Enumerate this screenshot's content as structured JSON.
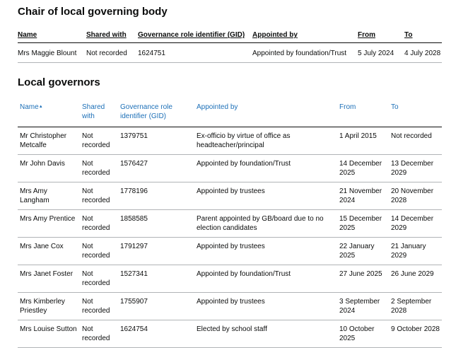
{
  "chair": {
    "title": "Chair of local governing body",
    "headers": [
      "Name",
      "Shared with",
      "Governance role identifier (GID)",
      "Appointed by",
      "From",
      "To"
    ],
    "rows": [
      [
        "Mrs Maggie Blount",
        "Not recorded",
        "1624751",
        "Appointed by foundation/Trust",
        "5 July 2024",
        "4 July 2028"
      ]
    ]
  },
  "governors": {
    "title": "Local governors",
    "headers": [
      "Name",
      "Shared with",
      "Governance role identifier (GID)",
      "Appointed by",
      "From",
      "To"
    ],
    "rows": [
      [
        "Mr Christopher Metcalfe",
        "Not recorded",
        "1379751",
        "Ex-officio by virtue of office as headteacher/principal",
        "1 April 2015",
        "Not recorded"
      ],
      [
        "Mr John Davis",
        "Not recorded",
        "1576427",
        "Appointed by foundation/Trust",
        "14 December 2025",
        "13 December 2029"
      ],
      [
        "Mrs Amy Langham",
        "Not recorded",
        "1778196",
        "Appointed by trustees",
        "21 November 2024",
        "20 November 2028"
      ],
      [
        "Mrs Amy Prentice",
        "Not recorded",
        "1858585",
        "Parent appointed by GB/board due to no election candidates",
        "15 December 2025",
        "14 December 2029"
      ],
      [
        "Mrs Jane Cox",
        "Not recorded",
        "1791297",
        "Appointed by trustees",
        "22 January 2025",
        "21 January 2029"
      ],
      [
        "Mrs Janet Foster",
        "Not recorded",
        "1527341",
        "Appointed by foundation/Trust",
        "27 June 2025",
        "26 June 2029"
      ],
      [
        "Mrs Kimberley Priestley",
        "Not recorded",
        "1755907",
        "Appointed by trustees",
        "3 September 2024",
        "2 September 2028"
      ],
      [
        "Mrs Louise Sutton",
        "Not recorded",
        "1624754",
        "Elected by school staff",
        "10 October 2025",
        "9 October 2028"
      ]
    ]
  }
}
